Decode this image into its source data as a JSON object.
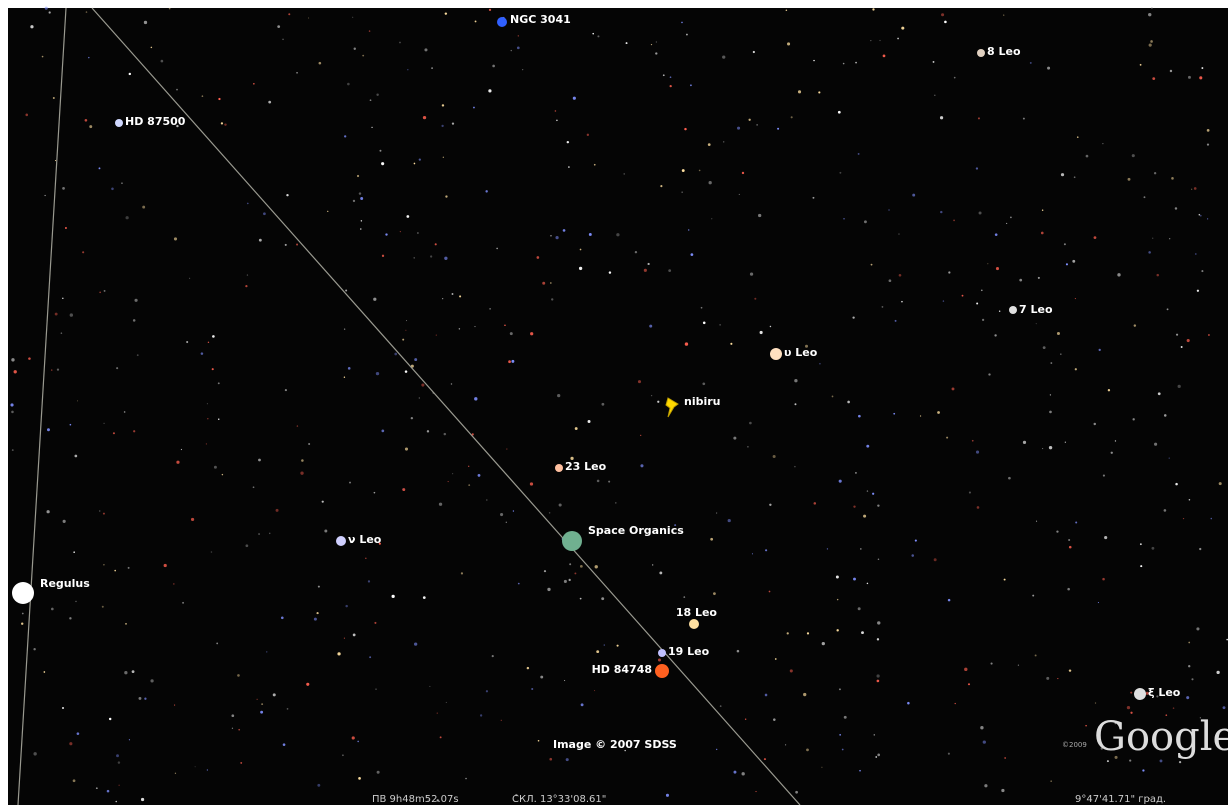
{
  "objects": [
    {
      "label": "NGC 3041"
    },
    {
      "label": "8 Leo"
    },
    {
      "label": "HD 87500"
    },
    {
      "label": "7 Leo"
    },
    {
      "label": "υ Leo"
    },
    {
      "label": "nibiru"
    },
    {
      "label": "23 Leo"
    },
    {
      "label": "Space Organics"
    },
    {
      "label": "ν Leo"
    },
    {
      "label": "Regulus"
    },
    {
      "label": "18 Leo"
    },
    {
      "label": "19 Leo"
    },
    {
      "label": "HD 84748"
    },
    {
      "label": "ξ Leo"
    }
  ],
  "credit": "Image © 2007 SDSS",
  "copyright": "©2009",
  "logo": "Google",
  "status": {
    "ra": "ПВ  9h48m52.07s",
    "dec": "СКЛ.  13°33'08.61\"",
    "alt": "9°47'41.71\" град."
  }
}
